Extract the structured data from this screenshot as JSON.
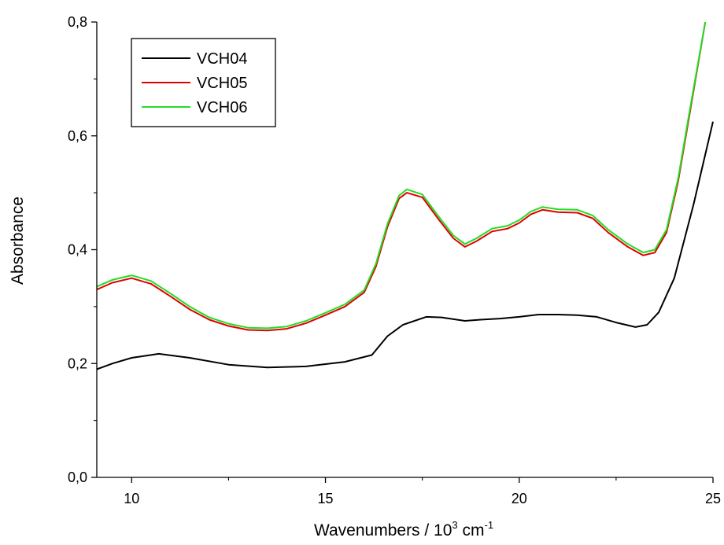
{
  "chart_data": {
    "type": "line",
    "title": "",
    "xlabel": "Wavenumbers / 10",
    "xlabel_sup1": "3",
    "xlabel_mid": " cm",
    "xlabel_sup2": "-1",
    "ylabel": "Absorbance",
    "xlim": [
      9.1,
      25
    ],
    "ylim": [
      0,
      0.8
    ],
    "x_ticks": [
      10,
      15,
      20,
      25
    ],
    "x_tick_labels": [
      "10",
      "15",
      "20",
      "25"
    ],
    "y_ticks": [
      0,
      0.2,
      0.4,
      0.6,
      0.8
    ],
    "y_tick_labels": [
      "0,0",
      "0,2",
      "0,4",
      "0,6",
      "0,8"
    ],
    "grid": false,
    "legend_position": "top-left",
    "series": [
      {
        "name": "VCH04",
        "color": "#000000",
        "points": [
          [
            9.1,
            0.19
          ],
          [
            9.5,
            0.2
          ],
          [
            10.0,
            0.21
          ],
          [
            10.7,
            0.217
          ],
          [
            11.5,
            0.21
          ],
          [
            12.5,
            0.198
          ],
          [
            13.5,
            0.193
          ],
          [
            14.5,
            0.195
          ],
          [
            15.5,
            0.203
          ],
          [
            16.2,
            0.215
          ],
          [
            16.6,
            0.248
          ],
          [
            17.0,
            0.268
          ],
          [
            17.6,
            0.282
          ],
          [
            18.0,
            0.281
          ],
          [
            18.6,
            0.275
          ],
          [
            19.0,
            0.277
          ],
          [
            19.5,
            0.279
          ],
          [
            20.0,
            0.282
          ],
          [
            20.5,
            0.286
          ],
          [
            21.0,
            0.286
          ],
          [
            21.5,
            0.285
          ],
          [
            22.0,
            0.282
          ],
          [
            22.5,
            0.272
          ],
          [
            23.0,
            0.264
          ],
          [
            23.3,
            0.268
          ],
          [
            23.6,
            0.29
          ],
          [
            24.0,
            0.35
          ],
          [
            24.5,
            0.48
          ],
          [
            25.0,
            0.625
          ]
        ]
      },
      {
        "name": "VCH05",
        "color": "#e00000",
        "points": [
          [
            9.1,
            0.33
          ],
          [
            9.5,
            0.342
          ],
          [
            10.0,
            0.35
          ],
          [
            10.5,
            0.34
          ],
          [
            11.0,
            0.318
          ],
          [
            11.5,
            0.295
          ],
          [
            12.0,
            0.277
          ],
          [
            12.5,
            0.266
          ],
          [
            13.0,
            0.259
          ],
          [
            13.5,
            0.258
          ],
          [
            14.0,
            0.261
          ],
          [
            14.5,
            0.271
          ],
          [
            15.0,
            0.285
          ],
          [
            15.5,
            0.3
          ],
          [
            16.0,
            0.325
          ],
          [
            16.3,
            0.37
          ],
          [
            16.6,
            0.44
          ],
          [
            16.9,
            0.49
          ],
          [
            17.1,
            0.5
          ],
          [
            17.5,
            0.492
          ],
          [
            17.9,
            0.455
          ],
          [
            18.3,
            0.42
          ],
          [
            18.6,
            0.405
          ],
          [
            18.9,
            0.415
          ],
          [
            19.3,
            0.432
          ],
          [
            19.7,
            0.437
          ],
          [
            20.0,
            0.447
          ],
          [
            20.3,
            0.462
          ],
          [
            20.6,
            0.47
          ],
          [
            21.0,
            0.466
          ],
          [
            21.5,
            0.465
          ],
          [
            21.9,
            0.455
          ],
          [
            22.3,
            0.43
          ],
          [
            22.8,
            0.405
          ],
          [
            23.2,
            0.39
          ],
          [
            23.5,
            0.395
          ],
          [
            23.8,
            0.43
          ],
          [
            24.1,
            0.52
          ],
          [
            24.4,
            0.64
          ],
          [
            24.8,
            0.8
          ]
        ]
      },
      {
        "name": "VCH06",
        "color": "#22dd22",
        "points": [
          [
            9.1,
            0.335
          ],
          [
            9.5,
            0.347
          ],
          [
            10.0,
            0.355
          ],
          [
            10.5,
            0.345
          ],
          [
            11.0,
            0.323
          ],
          [
            11.5,
            0.3
          ],
          [
            12.0,
            0.281
          ],
          [
            12.5,
            0.27
          ],
          [
            13.0,
            0.263
          ],
          [
            13.5,
            0.262
          ],
          [
            14.0,
            0.265
          ],
          [
            14.5,
            0.275
          ],
          [
            15.0,
            0.289
          ],
          [
            15.5,
            0.304
          ],
          [
            16.0,
            0.329
          ],
          [
            16.3,
            0.375
          ],
          [
            16.6,
            0.445
          ],
          [
            16.9,
            0.495
          ],
          [
            17.1,
            0.506
          ],
          [
            17.5,
            0.497
          ],
          [
            17.9,
            0.46
          ],
          [
            18.3,
            0.425
          ],
          [
            18.6,
            0.41
          ],
          [
            18.9,
            0.42
          ],
          [
            19.3,
            0.437
          ],
          [
            19.7,
            0.442
          ],
          [
            20.0,
            0.452
          ],
          [
            20.3,
            0.467
          ],
          [
            20.6,
            0.475
          ],
          [
            21.0,
            0.471
          ],
          [
            21.5,
            0.47
          ],
          [
            21.9,
            0.46
          ],
          [
            22.3,
            0.435
          ],
          [
            22.8,
            0.41
          ],
          [
            23.2,
            0.395
          ],
          [
            23.5,
            0.4
          ],
          [
            23.8,
            0.435
          ],
          [
            24.1,
            0.525
          ],
          [
            24.4,
            0.645
          ],
          [
            24.8,
            0.8
          ]
        ]
      }
    ]
  }
}
